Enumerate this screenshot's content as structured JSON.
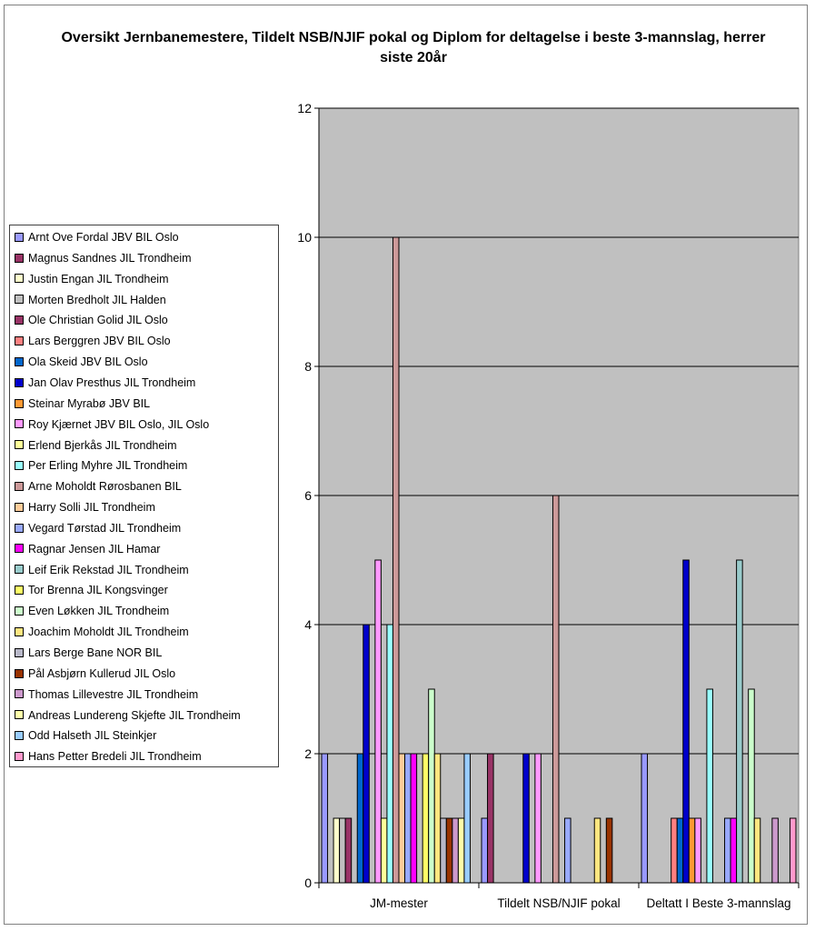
{
  "chart_data": {
    "type": "bar",
    "title": "Oversikt Jernbanemestere, Tildelt NSB/NJIF pokal og Diplom for deltagelse i beste 3-mannslag, herrer siste 20år",
    "categories": [
      "JM-mester",
      "Tildelt NSB/NJIF pokal",
      "Deltatt I Beste 3-mannslag"
    ],
    "ylim": [
      0,
      12
    ],
    "yticks": [
      0,
      2,
      4,
      6,
      8,
      10,
      12
    ],
    "grid": true,
    "plot_background": "#C0C0C0",
    "legend_position": "left",
    "series": [
      {
        "name": "Arnt Ove  Fordal JBV BIL Oslo",
        "color": "#9999FF",
        "values": [
          2,
          1,
          2
        ]
      },
      {
        "name": "Magnus Sandnes JIL Trondheim",
        "color": "#993366",
        "values": [
          0,
          2,
          0
        ]
      },
      {
        "name": "Justin   Engan JIL Trondheim",
        "color": "#FFFFCC",
        "values": [
          1,
          0,
          0
        ]
      },
      {
        "name": "Morten Bredholt JIL Halden",
        "color": "#C0C0C0",
        "values": [
          1,
          0,
          0
        ]
      },
      {
        "name": "Ole Christian  Golid JIL Oslo",
        "color": "#993366",
        "values": [
          1,
          0,
          0
        ]
      },
      {
        "name": "Lars  Berggren JBV BIL Oslo",
        "color": "#FF8080",
        "values": [
          0,
          0,
          1
        ]
      },
      {
        "name": "Ola  Skeid JBV BIL Oslo",
        "color": "#0066CC",
        "values": [
          2,
          0,
          1
        ]
      },
      {
        "name": "Jan Olav  Presthus JIL Trondheim",
        "color": "#0000CC",
        "values": [
          4,
          2,
          5
        ]
      },
      {
        "name": "Steinar  Myrabø JBV BIL",
        "color": "#FF9933",
        "values": [
          0,
          0,
          1
        ]
      },
      {
        "name": "Roy  Kjærnet JBV BIL Oslo, JIL Oslo",
        "color": "#FF99FF",
        "values": [
          5,
          2,
          1
        ]
      },
      {
        "name": "Erlend  Bjerkås JIL Trondheim",
        "color": "#FFFF99",
        "values": [
          1,
          0,
          0
        ]
      },
      {
        "name": "Per Erling  Myhre JIL Trondheim",
        "color": "#99FFFF",
        "values": [
          4,
          0,
          3
        ]
      },
      {
        "name": "Arne  Moholdt Rørosbanen BIL",
        "color": "#CC9999",
        "values": [
          10,
          6,
          0
        ]
      },
      {
        "name": "Harry  Solli JIL Trondheim",
        "color": "#FFCC99",
        "values": [
          2,
          0,
          0
        ]
      },
      {
        "name": "Vegard  Tørstad JIL Trondheim",
        "color": "#99AAFF",
        "values": [
          2,
          1,
          1
        ]
      },
      {
        "name": "Ragnar  Jensen JIL Hamar",
        "color": "#FF00FF",
        "values": [
          2,
          0,
          1
        ]
      },
      {
        "name": "Leif Erik  Rekstad JIL Trondheim",
        "color": "#99CCCC",
        "values": [
          0,
          0,
          5
        ]
      },
      {
        "name": "Tor  Brenna JIL Kongsvinger",
        "color": "#FFFF66",
        "values": [
          2,
          0,
          0
        ]
      },
      {
        "name": "Even  Løkken JIL Trondheim",
        "color": "#CCFFCC",
        "values": [
          3,
          0,
          3
        ]
      },
      {
        "name": "Joachim   Moholdt JIL Trondheim",
        "color": "#FFE680",
        "values": [
          2,
          1,
          1
        ]
      },
      {
        "name": "Lars  Berge Bane NOR BIL",
        "color": "#B8B8C8",
        "values": [
          1,
          0,
          0
        ]
      },
      {
        "name": "Pål Asbjørn  Kullerud JIL Oslo",
        "color": "#993300",
        "values": [
          1,
          1,
          0
        ]
      },
      {
        "name": "Thomas  Lillevestre  JIL Trondheim",
        "color": "#CC99CC",
        "values": [
          1,
          0,
          1
        ]
      },
      {
        "name": "Andreas  Lundereng Skjefte  JIL Trondheim",
        "color": "#FFFFAA",
        "values": [
          1,
          0,
          0
        ]
      },
      {
        "name": "Odd  Halseth JIL Steinkjer",
        "color": "#99CCFF",
        "values": [
          2,
          0,
          0
        ]
      },
      {
        "name": "Hans Petter  Bredeli JIL Trondheim",
        "color": "#FF99CC",
        "values": [
          0,
          0,
          1
        ]
      }
    ]
  }
}
